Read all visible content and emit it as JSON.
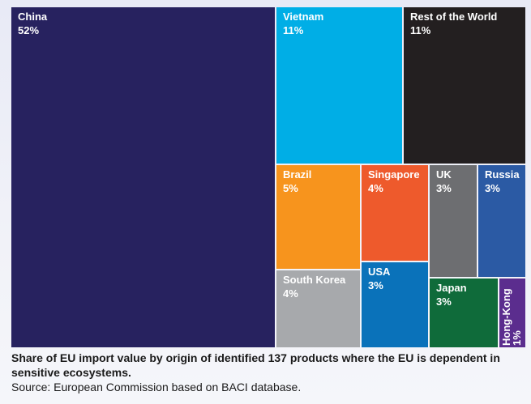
{
  "chart_data": {
    "type": "treemap",
    "unit": "%",
    "items": [
      {
        "name": "China",
        "value": 52,
        "label": "52%",
        "color": "#27225f"
      },
      {
        "name": "Vietnam",
        "value": 11,
        "label": "11%",
        "color": "#00aee6"
      },
      {
        "name": "Rest of the World",
        "value": 11,
        "label": "11%",
        "color": "#231f20"
      },
      {
        "name": "Brazil",
        "value": 5,
        "label": "5%",
        "color": "#f7941d"
      },
      {
        "name": "Singapore",
        "value": 4,
        "label": "4%",
        "color": "#ee5a2c"
      },
      {
        "name": "UK",
        "value": 3,
        "label": "3%",
        "color": "#6d6e71"
      },
      {
        "name": "Russia",
        "value": 3,
        "label": "3%",
        "color": "#2b5aa4"
      },
      {
        "name": "South Korea",
        "value": 4,
        "label": "4%",
        "color": "#a7a9ac"
      },
      {
        "name": "USA",
        "value": 3,
        "label": "3%",
        "color": "#0a72ba"
      },
      {
        "name": "Japan",
        "value": 3,
        "label": "3%",
        "color": "#0f6b3a"
      },
      {
        "name": "Hong-Kong",
        "value": 1,
        "label": "1%",
        "color": "#5b2d8e"
      }
    ]
  },
  "caption": {
    "title": "Share of EU import value by origin of identified 137 products where the EU is dependent in sensitive ecosystems.",
    "source": "Source: European Commission based on BACI database."
  }
}
